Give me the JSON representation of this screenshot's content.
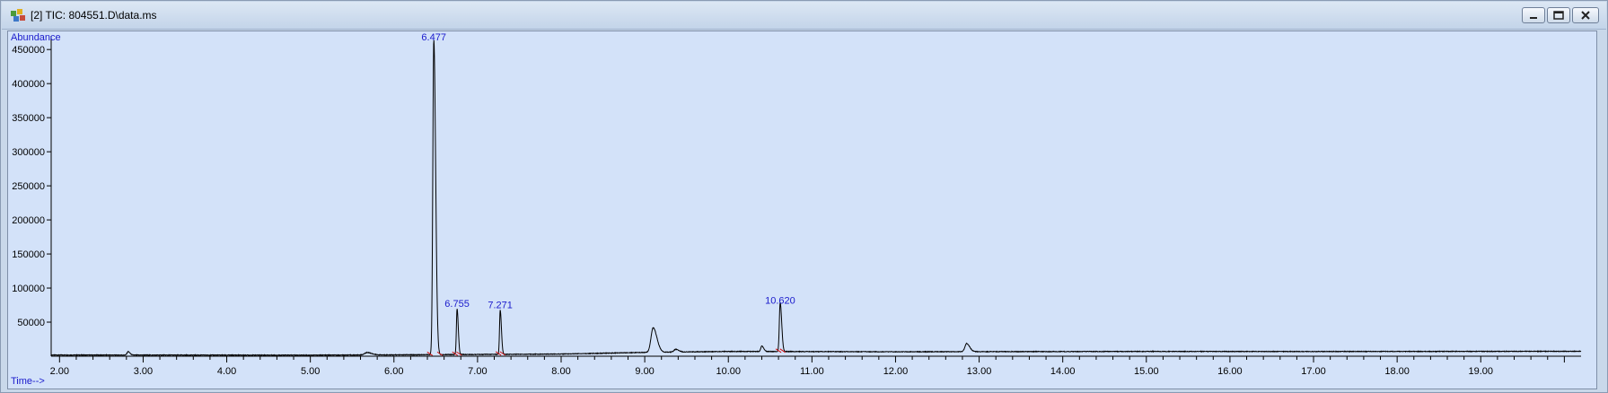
{
  "window": {
    "title": "[2] TIC: 804551.D\\data.ms",
    "icons": [
      "chromatogram-app-icon",
      "minimize-icon",
      "maximize-icon",
      "close-icon"
    ]
  },
  "chart_data": {
    "type": "line",
    "ylabel": "Abundance",
    "xlabel": "Time-->",
    "xlim": [
      1.9,
      20.2
    ],
    "ylim": [
      0,
      470000
    ],
    "x_ticks": [
      2.0,
      3.0,
      4.0,
      5.0,
      6.0,
      7.0,
      8.0,
      9.0,
      10.0,
      11.0,
      12.0,
      13.0,
      14.0,
      15.0,
      16.0,
      17.0,
      18.0,
      19.0
    ],
    "x_tick_labels": [
      "2.00",
      "3.00",
      "4.00",
      "5.00",
      "6.00",
      "7.00",
      "8.00",
      "9.00",
      "10.00",
      "11.00",
      "12.00",
      "13.00",
      "14.00",
      "15.00",
      "16.00",
      "17.00",
      "18.00",
      "19.00"
    ],
    "y_ticks": [
      50000,
      100000,
      150000,
      200000,
      250000,
      300000,
      350000,
      400000,
      450000
    ],
    "y_tick_labels": [
      "50000",
      "100000",
      "150000",
      "200000",
      "250000",
      "300000",
      "350000",
      "400000",
      "450000"
    ],
    "baseline": [
      {
        "x": 1.9,
        "y": 1800
      },
      {
        "x": 5.0,
        "y": 1600
      },
      {
        "x": 6.0,
        "y": 2000
      },
      {
        "x": 7.0,
        "y": 2600
      },
      {
        "x": 8.0,
        "y": 3200
      },
      {
        "x": 9.0,
        "y": 5600
      },
      {
        "x": 10.0,
        "y": 7000
      },
      {
        "x": 11.0,
        "y": 6800
      },
      {
        "x": 12.0,
        "y": 6500
      },
      {
        "x": 13.0,
        "y": 6700
      },
      {
        "x": 15.0,
        "y": 7000
      },
      {
        "x": 17.0,
        "y": 6900
      },
      {
        "x": 20.2,
        "y": 7200
      }
    ],
    "peaks": [
      {
        "rt": 2.82,
        "height": 5000,
        "width": 0.012
      },
      {
        "rt": 5.68,
        "height": 3500,
        "width": 0.03
      },
      {
        "rt": 6.477,
        "height": 462000,
        "width": 0.012
      },
      {
        "rt": 6.755,
        "height": 67000,
        "width": 0.008
      },
      {
        "rt": 7.271,
        "height": 65000,
        "width": 0.008
      },
      {
        "rt": 9.1,
        "height": 36000,
        "width": 0.025
      },
      {
        "rt": 9.37,
        "height": 4000,
        "width": 0.02
      },
      {
        "rt": 10.4,
        "height": 8000,
        "width": 0.012
      },
      {
        "rt": 10.62,
        "height": 72000,
        "width": 0.01
      },
      {
        "rt": 12.85,
        "height": 12000,
        "width": 0.02
      }
    ],
    "peak_labels": [
      {
        "text": "6.477",
        "x": 6.477,
        "y": 462000
      },
      {
        "text": "6.755",
        "x": 6.755,
        "y": 67000
      },
      {
        "text": "7.271",
        "x": 7.271,
        "y": 65000
      },
      {
        "text": "10.620",
        "x": 10.62,
        "y": 72000
      }
    ],
    "integration_marks": [
      {
        "x": 6.43
      },
      {
        "x": 6.55
      },
      {
        "x": 6.73
      },
      {
        "x": 6.78
      },
      {
        "x": 7.25
      },
      {
        "x": 7.3
      },
      {
        "x": 10.6
      },
      {
        "x": 10.65
      }
    ],
    "trace_color": "#000000",
    "label_color": "#1a1acc",
    "integration_color": "#d01010",
    "plot_background": "#d3e2f9"
  }
}
